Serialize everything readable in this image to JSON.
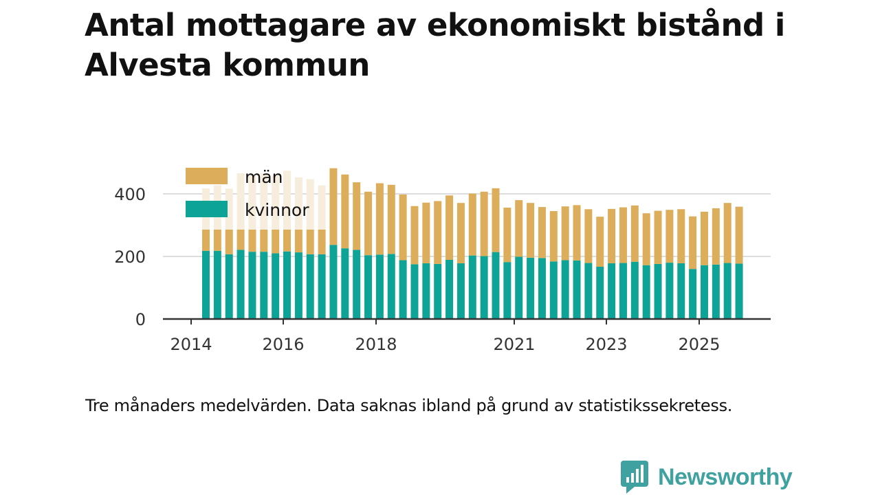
{
  "title": "Antal mottagare av ekonomiskt bistånd i Alvesta kommun",
  "footnote": "Tre månaders medelvärden. Data saknas ibland på grund av statistikssekretess.",
  "brand": {
    "name": "Newsworthy",
    "logo_icon": "bar-chart-icon"
  },
  "colors": {
    "women": "#0ea397",
    "men": "#dcad5a",
    "men_faded": "#f7eddd",
    "grid": "#dddddd",
    "axis": "#333333"
  },
  "chart_data": {
    "type": "bar",
    "stacked": true,
    "title": "Antal mottagare av ekonomiskt bistånd i Alvesta kommun",
    "xlabel": "",
    "ylabel": "",
    "ylim": [
      0,
      500
    ],
    "yticks": [
      0,
      200,
      400
    ],
    "xticks": [
      "2014",
      "2016",
      "2018",
      "2021",
      "2023",
      "2025"
    ],
    "legend": {
      "position": "top-left",
      "entries": [
        "män",
        "kvinnor"
      ]
    },
    "note": "Bars for 2014–2016 are partly masked by the legend (faded).",
    "series": [
      {
        "name": "kvinnor",
        "values": [
          218,
          218,
          207,
          221,
          215,
          215,
          210,
          216,
          213,
          207,
          207,
          237,
          226,
          221,
          204,
          206,
          208,
          188,
          175,
          178,
          176,
          189,
          178,
          203,
          201,
          214,
          182,
          199,
          196,
          195,
          184,
          188,
          187,
          179,
          167,
          178,
          179,
          183,
          172,
          176,
          180,
          178,
          160,
          172,
          174,
          179,
          177
        ]
      },
      {
        "name": "män",
        "values": [
          200,
          210,
          210,
          245,
          245,
          250,
          250,
          258,
          240,
          240,
          220,
          245,
          236,
          216,
          203,
          228,
          221,
          210,
          186,
          194,
          201,
          206,
          193,
          198,
          206,
          204,
          174,
          181,
          175,
          163,
          161,
          172,
          177,
          172,
          160,
          174,
          178,
          180,
          166,
          170,
          169,
          173,
          168,
          171,
          180,
          192,
          182
        ]
      }
    ]
  }
}
